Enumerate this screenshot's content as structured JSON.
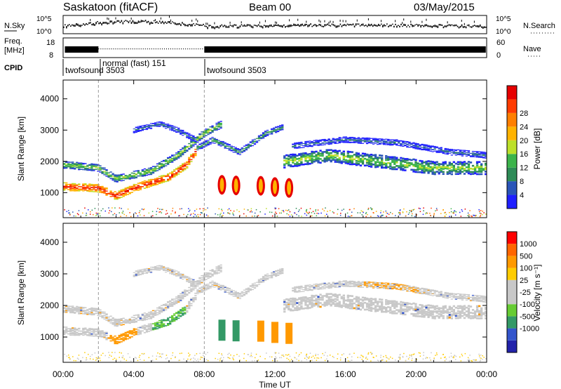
{
  "header": {
    "station": "Saskatoon (fitACF)",
    "beam": "Beam 00",
    "date": "03/May/2015"
  },
  "colors": {
    "power_scale": [
      "#1f1fff",
      "#2a55b8",
      "#2e8b57",
      "#3cb44b",
      "#bde02a",
      "#ffb300",
      "#ff7f00",
      "#ff3b00",
      "#e60000"
    ],
    "velocity_scale": [
      "#ff0000",
      "#ff6600",
      "#ff9900",
      "#ffcc00",
      "#c8c8c8",
      "#c8c8c8",
      "#66cc33",
      "#339966",
      "#3355cc",
      "#2222aa"
    ]
  },
  "chart_data": [
    {
      "type": "line",
      "name": "sky-search-panel",
      "left_label": "N.Sky",
      "right_label": "N.Search",
      "left_ticks": [
        "10^5",
        "10^0"
      ],
      "right_ticks": [
        "10^5",
        "10^0"
      ]
    },
    {
      "type": "line",
      "name": "freq-nave-panel",
      "left_label_1": "Freq.",
      "left_label_2": "[MHz]",
      "right_label": "Nave",
      "left_ticks": [
        "18",
        "8"
      ],
      "right_ticks": [
        "60",
        "0"
      ],
      "cpid_label": "CPID",
      "modes": [
        {
          "label": "twofsound 3503",
          "start_h": 0,
          "end_h": 2
        },
        {
          "label": "normal (fast) 151",
          "start_h": 2,
          "end_h": 8
        },
        {
          "label": "twofsound 3503",
          "start_h": 8,
          "end_h": 24
        }
      ]
    },
    {
      "type": "heatmap",
      "name": "power",
      "ylabel": "Slant Range [km]",
      "yticks": [
        "1000",
        "2000",
        "3000",
        "4000"
      ],
      "ylim": [
        200,
        4600
      ],
      "colorbar_label": "Power [dB]",
      "colorbar_ticks": [
        "4",
        "8",
        "12",
        "16",
        "20",
        "24",
        "28"
      ]
    },
    {
      "type": "heatmap",
      "name": "velocity",
      "ylabel": "Slant Range [km]",
      "yticks": [
        "1000",
        "2000",
        "3000",
        "4000"
      ],
      "ylim": [
        200,
        4600
      ],
      "colorbar_label": "Velocity [m s⁻¹]",
      "colorbar_ticks": [
        "1000",
        "500",
        "100",
        "25",
        "-25",
        "-100",
        "-500",
        "-1000"
      ]
    }
  ],
  "xaxis": {
    "xlabel": "Time UT",
    "ticks": [
      "00:00",
      "04:00",
      "08:00",
      "12:00",
      "16:00",
      "20:00",
      "00:00"
    ],
    "xlim": [
      0,
      24
    ]
  }
}
